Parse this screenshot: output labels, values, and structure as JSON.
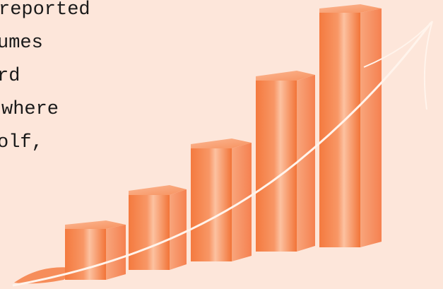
{
  "text_lines": [
    "reported",
    "umes",
    "rd",
    "where",
    "olf,"
  ]
}
